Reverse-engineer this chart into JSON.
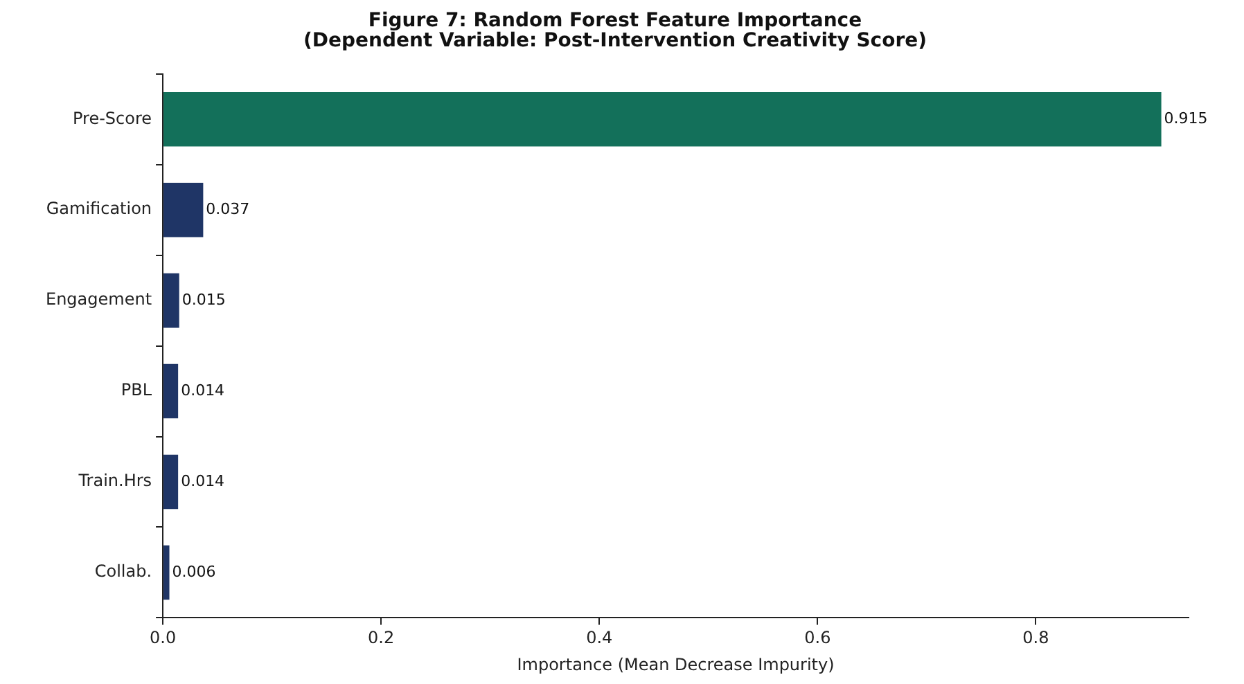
{
  "chart_data": {
    "type": "bar",
    "orientation": "horizontal",
    "title": "Figure 7: Random Forest Feature Importance\n(Dependent Variable: Post-Intervention Creativity Score)",
    "xlabel": "Importance (Mean Decrease Impurity)",
    "categories": [
      "Pre-Score",
      "Gamification",
      "Engagement",
      "PBL",
      "Train.Hrs",
      "Collab."
    ],
    "values": [
      0.915,
      0.037,
      0.015,
      0.014,
      0.014,
      0.006
    ],
    "colors": [
      "#13705a",
      "#1f3566",
      "#1f3566",
      "#1f3566",
      "#1f3566",
      "#1f3566"
    ],
    "xlim": [
      0,
      0.94
    ],
    "xticks": [
      {
        "value": 0,
        "label": "0.0"
      },
      {
        "value": 0.2,
        "label": "0.2"
      },
      {
        "value": 0.4,
        "label": "0.4"
      },
      {
        "value": 0.6,
        "label": "0.6"
      },
      {
        "value": 0.8,
        "label": "0.8"
      }
    ],
    "data_labels": true,
    "grid": false,
    "legend": false
  }
}
